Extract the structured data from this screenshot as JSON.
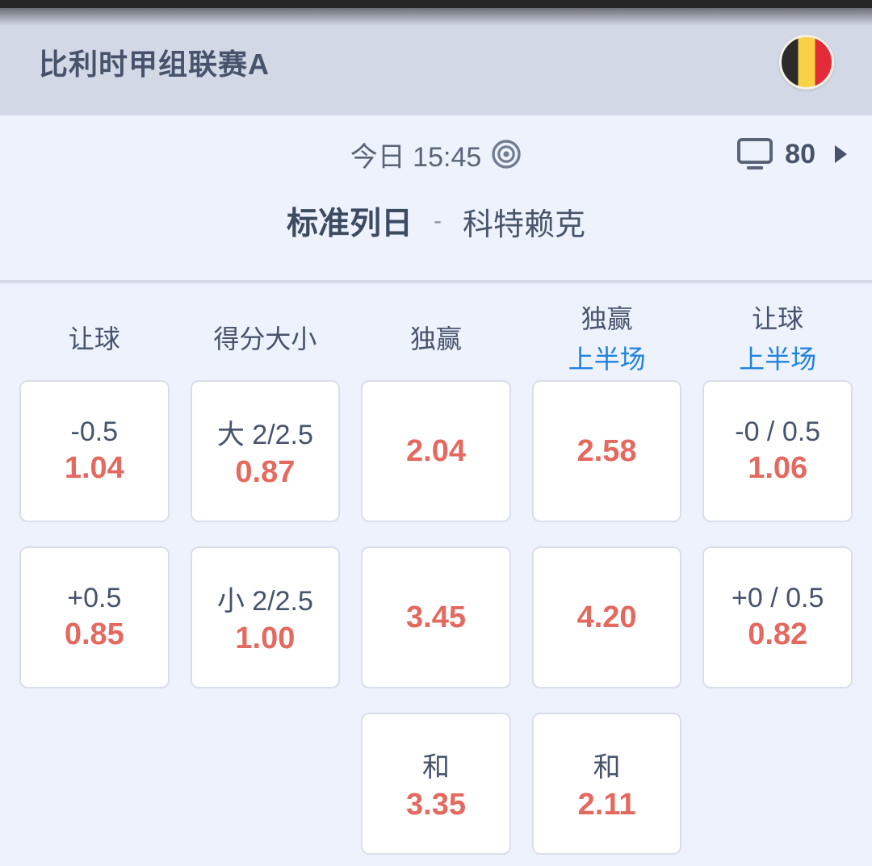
{
  "colors": {
    "header_bg": "#d2d8e5",
    "page_bg": "#eef2fd",
    "text_dark": "#46536b",
    "odds_red": "#e4695f",
    "halftime_blue": "#1f82dd",
    "flag_black": "#2b2b2b",
    "flag_yellow": "#f8d147",
    "flag_red": "#e22a38"
  },
  "header": {
    "league": "比利时甲组联赛A",
    "flag_icon": "belgium-flag-icon"
  },
  "match": {
    "time": "今日 15:45",
    "time_icon": "bullseye-icon",
    "tv_icon": "tv-icon",
    "tv_count": "80",
    "more_icon": "chevron-right-icon",
    "home_team": "标准列日",
    "separator": "-",
    "away_team": "科特赖克"
  },
  "columns": [
    {
      "label": "让球",
      "sub": ""
    },
    {
      "label": "得分大小",
      "sub": ""
    },
    {
      "label": "独赢",
      "sub": ""
    },
    {
      "label": "独赢",
      "sub": "上半场"
    },
    {
      "label": "让球",
      "sub": "上半场"
    }
  ],
  "odds": {
    "rows": [
      [
        {
          "label": "-0.5",
          "odds": "1.04"
        },
        {
          "label": "大 2/2.5",
          "odds": "0.87"
        },
        {
          "odds": "2.04"
        },
        {
          "odds": "2.58"
        },
        {
          "label": "-0 / 0.5",
          "odds": "1.06"
        }
      ],
      [
        {
          "label": "+0.5",
          "odds": "0.85"
        },
        {
          "label": "小 2/2.5",
          "odds": "1.00"
        },
        {
          "odds": "3.45"
        },
        {
          "odds": "4.20"
        },
        {
          "label": "+0 / 0.5",
          "odds": "0.82"
        }
      ],
      [
        null,
        null,
        {
          "label": "和",
          "odds": "3.35"
        },
        {
          "label": "和",
          "odds": "2.11"
        },
        null
      ]
    ]
  }
}
